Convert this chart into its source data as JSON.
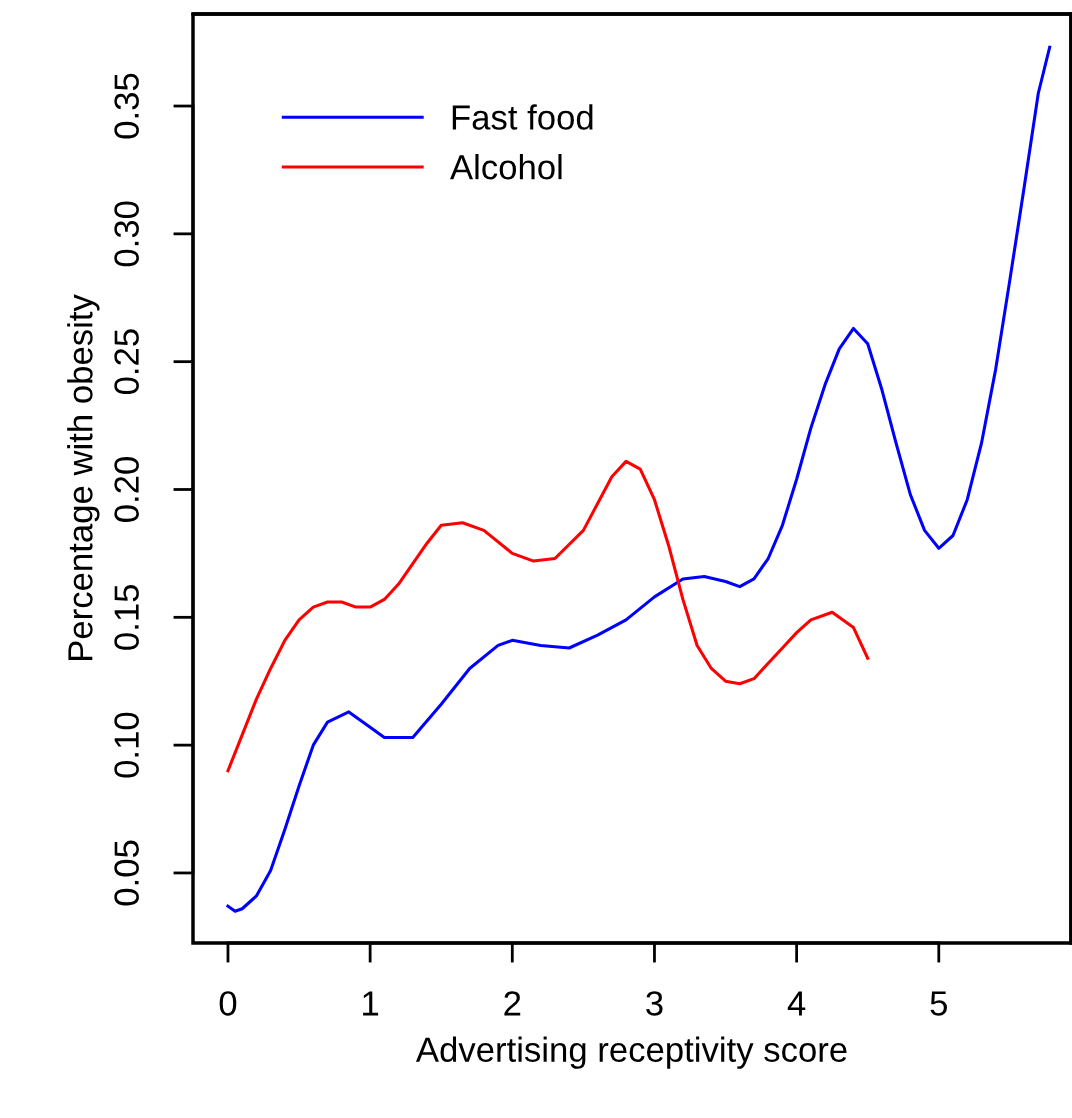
{
  "chart_data": {
    "type": "line",
    "xlabel": "Advertising receptivity score",
    "ylabel": "Percentage with obesity",
    "series": [
      {
        "name": "Fast food",
        "color": "#0000ff",
        "x": [
          0,
          0.05,
          0.1,
          0.2,
          0.3,
          0.4,
          0.5,
          0.6,
          0.7,
          0.85,
          1.0,
          1.1,
          1.3,
          1.5,
          1.7,
          1.9,
          2.0,
          2.2,
          2.4,
          2.6,
          2.8,
          3.0,
          3.2,
          3.35,
          3.5,
          3.6,
          3.7,
          3.8,
          3.9,
          4.0,
          4.1,
          4.2,
          4.3,
          4.4,
          4.5,
          4.6,
          4.7,
          4.8,
          4.9,
          5.0,
          5.1,
          5.2,
          5.3,
          5.4,
          5.5,
          5.6,
          5.7,
          5.78
        ],
        "values": [
          0.037,
          0.035,
          0.036,
          0.041,
          0.051,
          0.067,
          0.084,
          0.1,
          0.109,
          0.113,
          0.107,
          0.103,
          0.103,
          0.116,
          0.13,
          0.139,
          0.141,
          0.139,
          0.138,
          0.143,
          0.149,
          0.158,
          0.165,
          0.166,
          0.164,
          0.162,
          0.165,
          0.173,
          0.186,
          0.204,
          0.224,
          0.241,
          0.255,
          0.263,
          0.257,
          0.239,
          0.218,
          0.198,
          0.184,
          0.177,
          0.182,
          0.196,
          0.218,
          0.247,
          0.282,
          0.318,
          0.355,
          0.373
        ]
      },
      {
        "name": "Alcohol",
        "color": "#ff0000",
        "x": [
          0,
          0.1,
          0.2,
          0.3,
          0.4,
          0.5,
          0.6,
          0.7,
          0.8,
          0.9,
          1.0,
          1.1,
          1.2,
          1.3,
          1.4,
          1.5,
          1.65,
          1.8,
          2.0,
          2.15,
          2.3,
          2.5,
          2.7,
          2.8,
          2.9,
          3.0,
          3.1,
          3.2,
          3.3,
          3.4,
          3.5,
          3.6,
          3.7,
          3.8,
          3.9,
          4.0,
          4.1,
          4.25,
          4.4,
          4.5
        ],
        "values": [
          0.09,
          0.104,
          0.118,
          0.13,
          0.141,
          0.149,
          0.154,
          0.156,
          0.156,
          0.154,
          0.154,
          0.157,
          0.163,
          0.171,
          0.179,
          0.186,
          0.187,
          0.184,
          0.175,
          0.172,
          0.173,
          0.184,
          0.205,
          0.211,
          0.208,
          0.196,
          0.178,
          0.157,
          0.139,
          0.13,
          0.125,
          0.124,
          0.126,
          0.132,
          0.138,
          0.144,
          0.149,
          0.152,
          0.146,
          0.134
        ]
      }
    ],
    "xlim": [
      -0.246,
      5.93
    ],
    "ylim": [
      0.0226,
      0.386
    ],
    "xticks": [
      0,
      1,
      2,
      3,
      4,
      5
    ],
    "yticks": [
      {
        "value": 0.05,
        "label": "0.05"
      },
      {
        "value": 0.1,
        "label": "0.10"
      },
      {
        "value": 0.15,
        "label": "0.15"
      },
      {
        "value": 0.2,
        "label": "0.20"
      },
      {
        "value": 0.25,
        "label": "0.25"
      },
      {
        "value": 0.3,
        "label": "0.30"
      },
      {
        "value": 0.35,
        "label": "0.35"
      }
    ],
    "grid": false,
    "legend": "top left",
    "line_style": "solid",
    "marker": "none"
  }
}
